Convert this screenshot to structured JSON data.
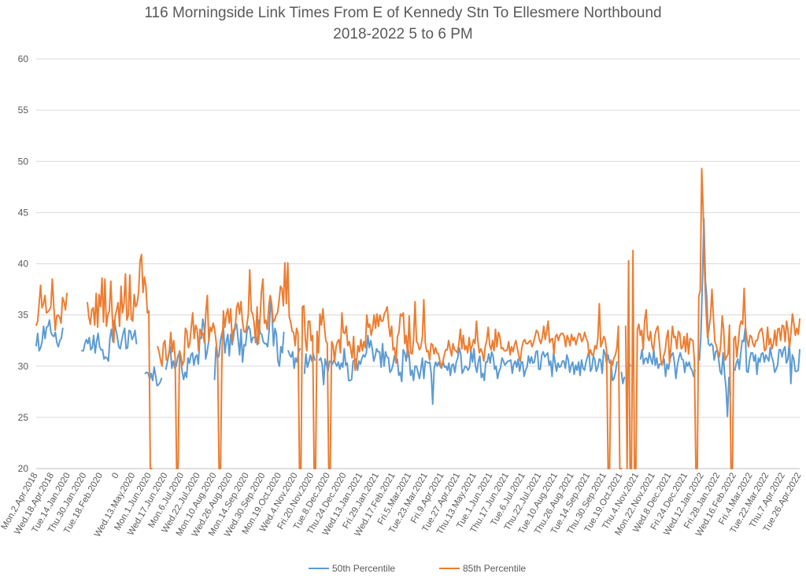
{
  "chart_data": {
    "type": "line",
    "title": "116 Morningside Link Times From E of Kennedy Stn To Ellesmere Northbound",
    "subtitle": "2018-2022 5 to 6 PM",
    "xlabel": "",
    "ylabel": "",
    "ylim": [
      20,
      60
    ],
    "yticks": [
      20,
      25,
      30,
      35,
      40,
      45,
      50,
      55,
      60
    ],
    "grid": true,
    "legend_position": "bottom",
    "x_tick_labels": [
      "Mon.2.Apr.2018",
      "Wed.18.Apr.2018",
      "Tue.14.Jan.2020",
      "Thu.30.Jan.2020",
      "Tue.18.Feb.2020",
      "0",
      "Wed.13.May.2020",
      "Mon.1.Jun.2020",
      "Wed.17.Jun.2020",
      "Mon.6.Jul.2020",
      "Wed.22.Jul.2020",
      "Mon.10.Aug.2020",
      "Wed.26.Aug.2020",
      "Mon.14.Sep.2020",
      "Wed.30.Sep.2020",
      "Mon.19.Oct.2020",
      "Wed.4.Nov.2020",
      "Fri.20.Nov.2020",
      "Tue.8.Dec.2020",
      "Thu.24.Dec.2020",
      "Wed.13.Jan.2021",
      "Fri.29.Jan.2021",
      "Wed.17.Feb.2021",
      "Fri.5.Mar.2021",
      "Tue.23.Mar.2021",
      "Fri.9.Apr.2021",
      "Tue.27.Apr.2021",
      "Thu.13.May.2021",
      "Tue.1.Jun.2021",
      "Thu.17.Jun.2021",
      "Tue.6.Jul.2021",
      "Thu.22.Jul.2021",
      "Tue.10.Aug.2021",
      "Thu.26.Aug.2021",
      "Tue.14.Sep.2021",
      "Thu.30.Sep.2021",
      "Tue.19.Oct.2021",
      "Thu.4.Nov.2021",
      "Mon.22.Nov.2021",
      "Wed.8.Dec.2021",
      "Fri.24.Dec.2021",
      "Wed.12.Jan.2022",
      "Fri.28.Jan.2022",
      "Wed.16.Feb.2022",
      "Fri.4.Mar.2022",
      "Tue.22.Mar.2022",
      "Thu.7.Apr.2022",
      "Tue.26.Apr.2022"
    ],
    "series": [
      {
        "name": "50th Percentile",
        "color": "#5B9BD5",
        "values": [
          32.0,
          33.2,
          31.5,
          31.8,
          32.4,
          33.9,
          32.7,
          33.8,
          33.9,
          34.5,
          33.3,
          33.0,
          32.9,
          33.3,
          32.3,
          31.9,
          32.5,
          32.7,
          33.7,
          null,
          null,
          null,
          null,
          null,
          null,
          null,
          null,
          null,
          null,
          null,
          null,
          31.5,
          31.5,
          32.2,
          32.6,
          32.2,
          32.8,
          31.6,
          31.8,
          33.0,
          31.3,
          32.4,
          33.2,
          31.9,
          31.6,
          31.6,
          30.7,
          30.9,
          30.8,
          30.5,
          32.7,
          33.6,
          32.4,
          34.5,
          33.6,
          32.9,
          31.9,
          31.7,
          32.5,
          33.2,
          33.7,
          31.7,
          31.8,
          33.5,
          33.4,
          32.6,
          32.9,
          33.5,
          32.2,
          null,
          null,
          null,
          null,
          null,
          29.3,
          29.4,
          29.3,
          28.7,
          29.3,
          28.6,
          29.9,
          29.1,
          28.1,
          28.2,
          28.4,
          28.8,
          null,
          null,
          29.7,
          30.4,
          31.2,
          31.9,
          29.8,
          30.5,
          29.8,
          30.0,
          30.9,
          31.3,
          30.9,
          29.5,
          28.7,
          29.4,
          28.9,
          30.8,
          30.3,
          31.1,
          31.3,
          30.1,
          30.9,
          31.1,
          30.2,
          32.8,
          32.7,
          34.6,
          33.8,
          30.7,
          31.4,
          32.4,
          null,
          null,
          null,
          28.7,
          31.9,
          30.8,
          31.0,
          32.5,
          33.2,
          33.8,
          31.3,
          32.4,
          33.1,
          31.0,
          33.1,
          32.1,
          33.0,
          34.1,
          34.1,
          32.6,
          31.1,
          33.6,
          30.4,
          32.1,
          32.0,
          33.4,
          33.9,
          33.6,
          32.3,
          32.8,
          32.8,
          32.9,
          32.1,
          34.5,
          33.2,
          33.1,
          32.4,
          32.2,
          32.2,
          31.9,
          33.4,
          36.4,
          35.1,
          32.0,
          33.7,
          33.1,
          30.5,
          30.0,
          31.9,
          31.3,
          33.3,
          null,
          null,
          31.5,
          31.1,
          30.9,
          31.4,
          29.8,
          30.8,
          30.4,
          31.4,
          31.7,
          null,
          null,
          29.3,
          31.2,
          29.9,
          30.4,
          31.1,
          30.5,
          31.2,
          30.6,
          null,
          null,
          30.6,
          30.8,
          30.2,
          28.2,
          30.7,
          30.1,
          29.5,
          30.5,
          30.4,
          30.2,
          30.6,
          30.3,
          30.0,
          30.4,
          29.7,
          30.3,
          29.9,
          31.7,
          30.1,
          30.3,
          28.6,
          28.6,
          28.7,
          30.5,
          30.6,
          30.7,
          29.6,
          30.5,
          30.2,
          30.8,
          31.1,
          30.9,
          31.3,
          33.0,
          31.8,
          32.5,
          31.7,
          30.5,
          31.0,
          31.7,
          31.4,
          31.4,
          29.9,
          32.2,
          30.0,
          31.4,
          30.9,
          30.8,
          29.4,
          29.6,
          30.1,
          31.0,
          30.4,
          30.7,
          29.1,
          29.4,
          28.5,
          31.6,
          31.3,
          30.5,
          31.9,
          31.1,
          29.1,
          29.6,
          28.6,
          30.0,
          30.0,
          29.4,
          28.8,
          29.7,
          30.8,
          28.8,
          30.5,
          30.4,
          30.3,
          30.4,
          29.3,
          26.3,
          29.8,
          30.4,
          30.0,
          30.4,
          30.0,
          29.8,
          30.5,
          29.9,
          30.0,
          29.6,
          30.3,
          29.1,
          30.1,
          30.2,
          29.4,
          30.4,
          30.8,
          31.8,
          31.2,
          29.3,
          29.6,
          30.0,
          29.9,
          29.6,
          29.9,
          31.5,
          30.4,
          31.7,
          30.0,
          29.4,
          30.5,
          31.0,
          28.9,
          29.3,
          28.6,
          30.4,
          30.4,
          31.2,
          30.3,
          31.4,
          31.0,
          29.7,
          30.0,
          28.8,
          29.5,
          29.8,
          30.8,
          30.5,
          30.1,
          30.3,
          30.5,
          30.5,
          30.6,
          29.3,
          30.2,
          30.5,
          29.9,
          30.7,
          29.5,
          30.4,
          30.4,
          29.0,
          29.6,
          29.9,
          31.0,
          30.3,
          30.9,
          30.3,
          30.4,
          31.4,
          31.5,
          29.7,
          29.7,
          31.1,
          31.4,
          30.9,
          31.1,
          31.3,
          30.1,
          30.5,
          29.0,
          31.3,
          30.4,
          29.5,
          30.3,
          29.9,
          30.0,
          30.5,
          30.5,
          29.8,
          31.1,
          30.6,
          29.4,
          30.1,
          30.4,
          29.2,
          30.1,
          29.6,
          30.4,
          29.1,
          30.6,
          29.8,
          29.6,
          30.4,
          30.9,
          31.5,
          29.5,
          29.8,
          31.0,
          30.6,
          29.5,
          29.9,
          30.7,
          30.6,
          29.3,
          31.6,
          31.2,
          30.3,
          31.1,
          30.3,
          30.3,
          28.6,
          28.8,
          29.4,
          30.4,
          null,
          null,
          29.4,
          28.3,
          28.9,
          null,
          null,
          30.6,
          30.0,
          null,
          null,
          null,
          null,
          null,
          null,
          30.7,
          31.6,
          30.2,
          30.7,
          30.8,
          30.3,
          31.3,
          30.7,
          30.2,
          31.6,
          30.1,
          30.8,
          29.8,
          30.2,
          30.2,
          30.3,
          30.7,
          29.0,
          30.2,
          29.7,
          30.7,
          31.1,
          31.3,
          30.4,
          28.8,
          30.1,
          30.8,
          31.3,
          30.7,
          30.6,
          29.4,
          30.4,
          30.0,
          30.4,
          29.8,
          29.6,
          29.0,
          29.6,
          null,
          null,
          30.6,
          33.1,
          38.4,
          44.4,
          38.4,
          36.6,
          32.2,
          32.0,
          32.2,
          32.0,
          30.6,
          31.4,
          31.6,
          30.7,
          29.5,
          29.2,
          31.3,
          29.3,
          27.9,
          25.1,
          28.9,
          27.2,
          null,
          null,
          29.6,
          30.3,
          30.7,
          29.7,
          31.3,
          32.5,
          32.4,
          33.7,
          29.5,
          29.4,
          30.6,
          31.3,
          31.3,
          30.5,
          31.1,
          29.2,
          30.8,
          30.4,
          31.2,
          31.3,
          30.4,
          31.1,
          30.8,
          30.5,
          31.8,
          30.9,
          30.5,
          29.4,
          29.7,
          30.1,
          31.6,
          31.6,
          30.9,
          31.6,
          31.9,
          30.3,
          30.7,
          32.5,
          28.3,
          31.1,
          30.7,
          29.5,
          29.5,
          29.6,
          31.6
        ]
      },
      {
        "name": "85th Percentile",
        "color": "#ED7D31",
        "values": [
          34.0,
          34.4,
          36.1,
          37.9,
          35.7,
          36.1,
          36.9,
          35.2,
          35.3,
          35.5,
          35.8,
          38.5,
          35.9,
          33.5,
          34.9,
          35.0,
          34.8,
          34.2,
          36.7,
          36.3,
          35.5,
          37.1,
          null,
          null,
          null,
          null,
          null,
          null,
          null,
          null,
          null,
          null,
          null,
          null,
          null,
          36.2,
          34.8,
          34.1,
          35.5,
          35.7,
          34.0,
          37.1,
          33.8,
          37.0,
          35.8,
          38.6,
          34.3,
          38.5,
          33.9,
          35.0,
          35.4,
          38.3,
          34.9,
          32.3,
          34.9,
          35.5,
          36.2,
          33.9,
          37.8,
          35.2,
          36.1,
          39.0,
          34.5,
          35.0,
          38.9,
          34.6,
          34.4,
          37.0,
          35.8,
          36.1,
          37.2,
          40.3,
          40.9,
          37.2,
          38.7,
          37.8,
          35.2,
          35.4,
          20.0,
          20.0,
          null,
          null,
          null,
          31.9,
          31.4,
          30.6,
          30.0,
          32.2,
          32.5,
          30.6,
          30.7,
          31.5,
          33.3,
          31.4,
          32.5,
          30.8,
          20.0,
          20.0,
          31.5,
          30.9,
          30.1,
          30.5,
          33.7,
          33.4,
          31.8,
          32.2,
          33.8,
          35.2,
          32.7,
          34.0,
          33.6,
          31.5,
          33.6,
          33.1,
          33.2,
          32.3,
          35.3,
          36.9,
          32.4,
          33.8,
          33.4,
          34.2,
          33.6,
          32.4,
          31.1,
          20.0,
          20.0,
          31.2,
          35.4,
          33.8,
          35.0,
          35.6,
          34.2,
          35.6,
          32.4,
          33.6,
          33.6,
          35.7,
          36.2,
          35.1,
          36.3,
          34.4,
          33.4,
          33.3,
          34.0,
          35.0,
          39.4,
          35.4,
          35.1,
          34.2,
          32.3,
          35.8,
          32.2,
          34.5,
          37.3,
          38.5,
          34.2,
          34.5,
          33.6,
          35.8,
          36.9,
          36.1,
          34.3,
          34.5,
          35.0,
          35.2,
          36.3,
          37.8,
          37.6,
          35.9,
          40.1,
          36.1,
          40.1,
          34.8,
          34.3,
          33.4,
          33.3,
          32.0,
          33.7,
          33.2,
          20.0,
          20.0,
          35.8,
          35.9,
          32.6,
          31.5,
          34.4,
          34.4,
          32.5,
          33.0,
          20.0,
          20.0,
          33.4,
          31.3,
          35.1,
          34.0,
          35.6,
          33.9,
          32.5,
          32.2,
          20.0,
          20.0,
          32.4,
          32.0,
          30.5,
          31.9,
          32.4,
          32.6,
          31.3,
          35.2,
          33.3,
          33.2,
          33.9,
          32.0,
          32.4,
          31.7,
          30.8,
          32.9,
          29.6,
          30.3,
          32.0,
          31.4,
          32.6,
          31.5,
          32.4,
          31.8,
          35.0,
          33.8,
          34.1,
          33.0,
          33.7,
          35.0,
          33.7,
          35.1,
          33.9,
          35.0,
          34.4,
          34.4,
          35.1,
          35.4,
          35.8,
          34.0,
          32.9,
          33.9,
          31.6,
          31.8,
          30.3,
          32.9,
          33.3,
          35.1,
          34.9,
          35.2,
          32.2,
          33.0,
          30.9,
          34.9,
          31.3,
          31.2,
          32.6,
          36.3,
          32.4,
          32.2,
          31.6,
          31.9,
          32.8,
          36.5,
          32.3,
          31.4,
          31.5,
          30.6,
          32.2,
          32.1,
          31.2,
          31.8,
          31.3,
          31.2,
          30.5,
          29.9,
          30.4,
          31.1,
          31.6,
          31.6,
          32.5,
          31.7,
          31.0,
          32.2,
          31.6,
          31.5,
          31.3,
          32.2,
          33.6,
          31.7,
          33.0,
          31.6,
          32.0,
          31.3,
          32.8,
          31.5,
          32.0,
          32.6,
          32.2,
          34.4,
          32.4,
          31.3,
          31.7,
          31.3,
          30.5,
          31.9,
          32.5,
          33.8,
          32.1,
          31.6,
          32.5,
          31.5,
          33.6,
          31.9,
          33.3,
          32.9,
          31.7,
          31.8,
          31.5,
          31.5,
          31.6,
          32.4,
          31.1,
          31.9,
          31.4,
          32.1,
          32.5,
          31.7,
          31.0,
          30.5,
          31.8,
          32.4,
          32.6,
          32.2,
          32.2,
          32.4,
          32.5,
          31.9,
          32.3,
          32.9,
          33.5,
          33.3,
          32.6,
          32.2,
          32.8,
          33.9,
          32.6,
          33.4,
          34.4,
          32.3,
          32.6,
          32.7,
          31.2,
          32.9,
          33.1,
          32.5,
          33.0,
          33.2,
          33.2,
          32.9,
          31.9,
          33.0,
          32.6,
          32.0,
          33.1,
          32.5,
          32.8,
          32.1,
          32.7,
          33.2,
          33.1,
          32.4,
          32.7,
          33.3,
          32.7,
          32.4,
          31.1,
          31.6,
          31.1,
          31.1,
          32.0,
          31.7,
          32.7,
          36.1,
          31.9,
          32.3,
          32.9,
          32.6,
          31.5,
          20.0,
          20.0,
          30.6,
          30.1,
          30.8,
          31.1,
          31.8,
          33.9,
          20.0,
          20.0,
          null,
          null,
          33.9,
          20.0,
          40.3,
          20.0,
          20.0,
          41.3,
          20.0,
          20.0,
          33.6,
          34.1,
          33.0,
          33.5,
          31.6,
          34.5,
          35.5,
          32.9,
          32.5,
          33.4,
          32.0,
          31.5,
          33.0,
          33.6,
          33.9,
          32.4,
          30.6,
          30.1,
          31.0,
          31.5,
          32.8,
          33.5,
          30.3,
          32.0,
          33.9,
          32.8,
          32.9,
          31.7,
          33.4,
          33.2,
          31.7,
          31.9,
          32.9,
          31.4,
          33.2,
          31.2,
          32.7,
          32.6,
          32.5,
          30.5,
          20.0,
          20.0,
          36.8,
          37.4,
          49.3,
          45.2,
          39.1,
          35.4,
          32.8,
          33.7,
          34.8,
          37.5,
          34.8,
          32.4,
          32.0,
          31.4,
          30.9,
          32.1,
          34.9,
          33.6,
          30.6,
          30.9,
          31.2,
          34.0,
          20.0,
          20.0,
          32.7,
          32.9,
          30.9,
          32.3,
          33.9,
          34.4,
          34.1,
          37.6,
          33.7,
          32.6,
          31.9,
          33.0,
          32.9,
          32.2,
          31.9,
          32.5,
          32.5,
          33.2,
          33.5,
          33.7,
          32.9,
          31.5,
          31.7,
          33.8,
          32.1,
          32.7,
          31.7,
          32.2,
          33.5,
          32.0,
          33.6,
          33.7,
          32.5,
          34.0,
          33.9,
          32.4,
          34.4,
          33.5,
          31.8,
          33.2,
          35.1,
          34.2,
          33.0,
          33.7,
          33.1,
          34.6
        ]
      }
    ]
  }
}
